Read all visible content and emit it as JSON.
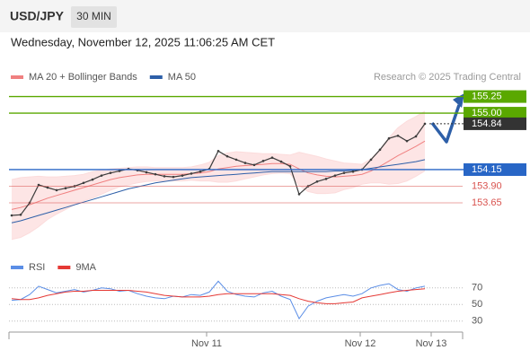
{
  "header": {
    "symbol": "USD/JPY",
    "interval": "30 MIN",
    "timestamp": "Wednesday, November 12, 2025 11:06:25 AM CET",
    "credit": "Research © 2025 Trading Central"
  },
  "chart_data": [
    {
      "type": "line",
      "ylim": [
        152.92,
        155.42
      ],
      "xlim": [
        -0.3,
        50.2
      ],
      "price": {
        "color": "#3c3c3c",
        "values": [
          153.46,
          153.47,
          153.65,
          153.92,
          153.88,
          153.84,
          153.87,
          153.9,
          153.95,
          154.0,
          154.06,
          154.1,
          154.13,
          154.16,
          154.14,
          154.11,
          154.08,
          154.05,
          154.04,
          154.06,
          154.09,
          154.12,
          154.16,
          154.43,
          154.35,
          154.3,
          154.25,
          154.22,
          154.28,
          154.33,
          154.27,
          154.2,
          153.78,
          153.9,
          153.97,
          154.01,
          154.06,
          154.1,
          154.12,
          154.15,
          154.3,
          154.45,
          154.62,
          154.66,
          154.58,
          154.65,
          154.84
        ]
      },
      "series": [
        {
          "name": "MA 20 + Bollinger Bands",
          "color": "#f08080",
          "band_color": "#fcdcdc",
          "values": [
            153.55,
            153.58,
            153.62,
            153.67,
            153.72,
            153.76,
            153.8,
            153.84,
            153.88,
            153.92,
            153.96,
            154.0,
            154.03,
            154.05,
            154.07,
            154.08,
            154.08,
            154.08,
            154.08,
            154.08,
            154.09,
            154.1,
            154.12,
            154.16,
            154.18,
            154.2,
            154.21,
            154.22,
            154.23,
            154.24,
            154.24,
            154.23,
            154.16,
            154.1,
            154.07,
            154.05,
            154.04,
            154.05,
            154.06,
            154.08,
            154.13,
            154.2,
            154.28,
            154.36,
            154.43,
            154.5,
            154.58
          ],
          "upper": [
            154.0,
            154.03,
            154.04,
            154.05,
            154.04,
            154.04,
            154.05,
            154.06,
            154.08,
            154.12,
            154.14,
            154.16,
            154.17,
            154.18,
            154.19,
            154.19,
            154.18,
            154.18,
            154.18,
            154.18,
            154.19,
            154.22,
            154.26,
            154.36,
            154.4,
            154.42,
            154.41,
            154.4,
            154.39,
            154.39,
            154.38,
            154.37,
            154.41,
            154.38,
            154.35,
            154.31,
            154.28,
            154.25,
            154.24,
            154.23,
            154.31,
            154.45,
            154.63,
            154.78,
            154.88,
            154.95,
            155.03
          ],
          "lower": [
            153.1,
            153.13,
            153.2,
            153.29,
            153.4,
            153.48,
            153.55,
            153.62,
            153.68,
            153.72,
            153.78,
            153.84,
            153.89,
            153.92,
            153.95,
            153.97,
            153.98,
            153.98,
            153.98,
            153.98,
            153.99,
            153.98,
            153.98,
            153.96,
            153.96,
            153.98,
            154.01,
            154.04,
            154.07,
            154.09,
            154.1,
            154.09,
            153.91,
            153.82,
            153.79,
            153.79,
            153.8,
            153.85,
            153.88,
            153.93,
            153.95,
            153.95,
            153.93,
            153.94,
            153.98,
            154.05,
            154.13
          ]
        },
        {
          "name": "MA 50",
          "color": "#2d5fa8",
          "values": [
            153.35,
            153.38,
            153.42,
            153.46,
            153.5,
            153.54,
            153.58,
            153.62,
            153.66,
            153.7,
            153.74,
            153.78,
            153.82,
            153.86,
            153.89,
            153.92,
            153.95,
            153.97,
            153.99,
            154.01,
            154.03,
            154.04,
            154.05,
            154.06,
            154.07,
            154.08,
            154.09,
            154.1,
            154.11,
            154.12,
            154.12,
            154.12,
            154.12,
            154.12,
            154.12,
            154.12,
            154.13,
            154.13,
            154.14,
            154.15,
            154.17,
            154.19,
            154.21,
            154.23,
            154.25,
            154.27,
            154.3
          ]
        }
      ],
      "levels": {
        "values": [
          155.25,
          155,
          154.84,
          154.15,
          153.9,
          153.65
        ],
        "value_labels": [
          "155.25",
          "155.00",
          "154.84",
          "154.15",
          "153.90",
          "153.65"
        ],
        "colors": [
          "#5aa800",
          "#5aa800",
          "#333333",
          "#2866c6",
          "#d9534f",
          "#d9534f"
        ],
        "kinds": [
          "line-box",
          "line-box",
          "price-box",
          "line-box",
          "line-text",
          "line-text"
        ]
      }
    },
    {
      "type": "line",
      "ylim": [
        19,
        87
      ],
      "xlim": [
        -0.3,
        50.2
      ],
      "yticks": [
        70,
        50,
        30
      ],
      "grid": true,
      "xticks": [
        {
          "value": 21.7,
          "label": "Nov 11"
        },
        {
          "value": 38.8,
          "label": "Nov 12"
        },
        {
          "value": 46.7,
          "label": "Nov 13"
        }
      ],
      "series": [
        {
          "name": "RSI",
          "color": "#5b8ee6",
          "values": [
            55,
            56,
            62,
            72,
            68,
            64,
            66,
            68,
            65,
            67,
            70,
            69,
            66,
            67,
            63,
            60,
            58,
            57,
            60,
            59,
            62,
            61,
            65,
            78,
            66,
            62,
            60,
            59,
            64,
            66,
            60,
            56,
            33,
            48,
            54,
            58,
            60,
            62,
            60,
            63,
            70,
            73,
            75,
            68,
            66,
            70,
            72
          ]
        },
        {
          "name": "9MA",
          "color": "#e53935",
          "values": [
            57,
            56,
            56,
            58,
            61,
            63,
            65,
            66,
            66,
            67,
            67,
            67,
            67,
            67,
            66,
            65,
            63,
            61,
            60,
            59,
            59,
            59,
            60,
            62,
            63,
            63,
            63,
            63,
            63,
            63,
            62,
            61,
            57,
            54,
            52,
            51,
            51,
            52,
            53,
            58,
            60,
            62,
            64,
            66,
            67,
            68,
            69
          ]
        }
      ]
    }
  ]
}
